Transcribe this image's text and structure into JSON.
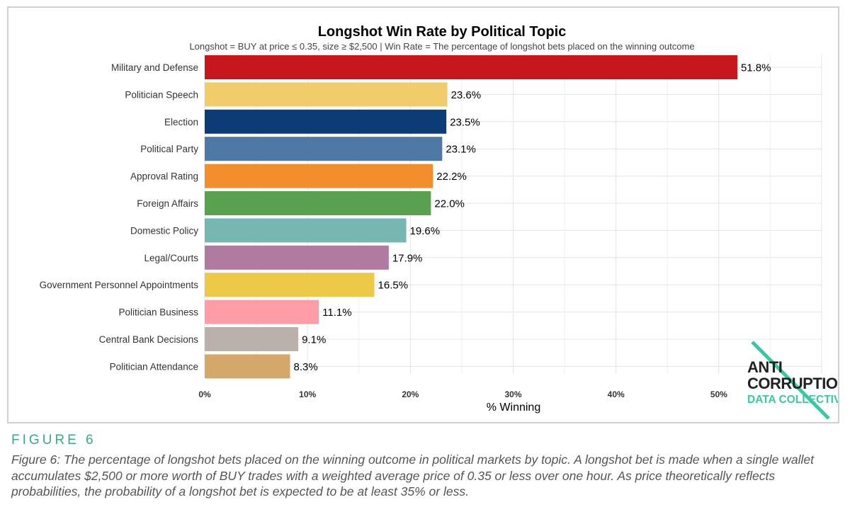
{
  "chart_data": {
    "type": "bar",
    "orientation": "horizontal",
    "title": "Longshot Win Rate by Political Topic",
    "subtitle": "Longshot = BUY at price ≤ 0.35, size ≥ $2,500 | Win Rate = The percentage of longshot bets placed on the winning outcome",
    "xlabel": "% Winning",
    "ylabel": "",
    "xlim": [
      0,
      60
    ],
    "xticks": [
      0,
      10,
      20,
      30,
      40,
      50
    ],
    "xtick_labels": [
      "0%",
      "10%",
      "20%",
      "30%",
      "40%",
      "50%"
    ],
    "grid": true,
    "bars": [
      {
        "category": "Military and Defense",
        "value": 51.8,
        "label": "51.8%",
        "color": "#c8161d"
      },
      {
        "category": "Politician Speech",
        "value": 23.6,
        "label": "23.6%",
        "color": "#f0cd6a"
      },
      {
        "category": "Election",
        "value": 23.5,
        "label": "23.5%",
        "color": "#0b3c75"
      },
      {
        "category": "Political Party",
        "value": 23.1,
        "label": "23.1%",
        "color": "#4e79a7"
      },
      {
        "category": "Approval Rating",
        "value": 22.2,
        "label": "22.2%",
        "color": "#f28e2b"
      },
      {
        "category": "Foreign Affairs",
        "value": 22.0,
        "label": "22.0%",
        "color": "#59a14f"
      },
      {
        "category": "Domestic Policy",
        "value": 19.6,
        "label": "19.6%",
        "color": "#76b7b2"
      },
      {
        "category": "Legal/Courts",
        "value": 17.9,
        "label": "17.9%",
        "color": "#b07aa1"
      },
      {
        "category": "Government Personnel Appointments",
        "value": 16.5,
        "label": "16.5%",
        "color": "#edc948"
      },
      {
        "category": "Politician Business",
        "value": 11.1,
        "label": "11.1%",
        "color": "#ff9da7"
      },
      {
        "category": "Central Bank Decisions",
        "value": 9.1,
        "label": "9.1%",
        "color": "#bab0ac"
      },
      {
        "category": "Politician Attendance",
        "value": 8.3,
        "label": "8.3%",
        "color": "#d4a76a"
      }
    ]
  },
  "logo": {
    "line1": "ANTI",
    "line2": "CORRUPTION",
    "line3": "DATA COLLECTIVE",
    "accent_color": "#3ec6a2"
  },
  "figure": {
    "label": "FIGURE 6",
    "caption": "Figure 6: The percentage of longshot bets placed on the winning outcome in political markets by topic. A longshot bet is made when a single wallet accumulates $2,500 or more worth of BUY trades with a weighted average price of 0.35 or less over one hour. As price theoretically reflects probabilities, the probability of a longshot bet is expected to be at least 35% or less."
  }
}
